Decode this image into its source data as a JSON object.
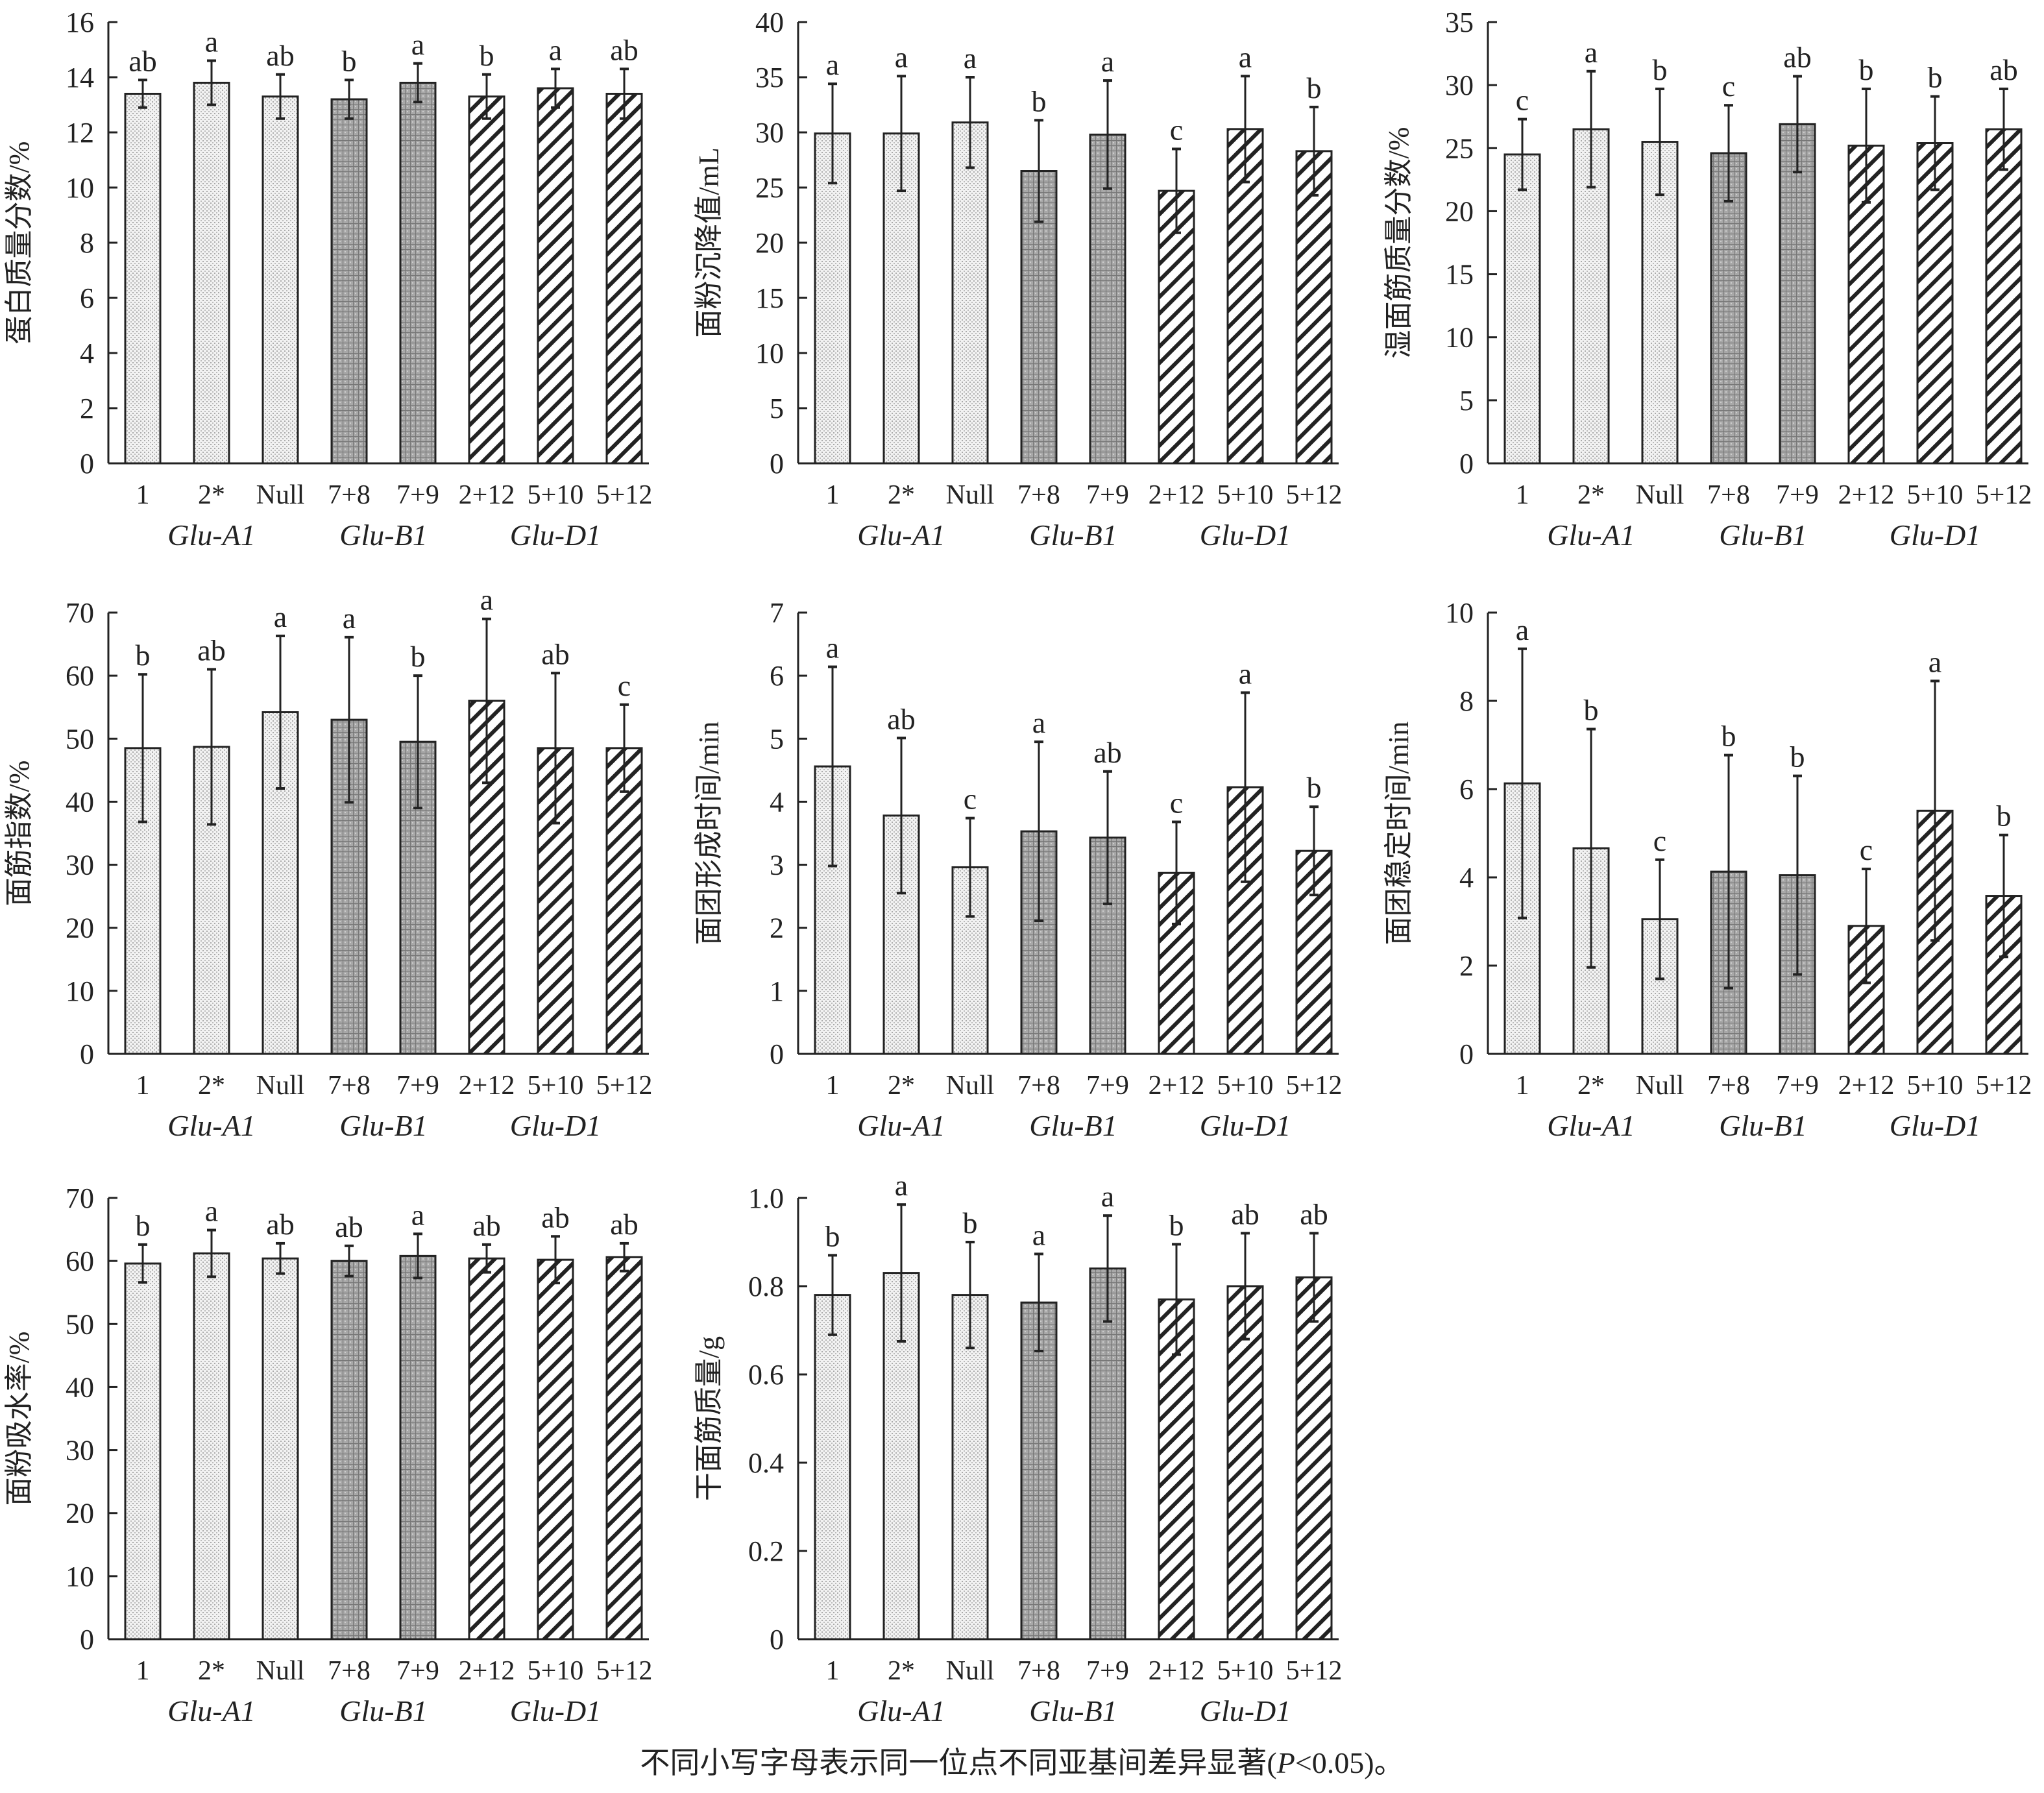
{
  "footnote": {
    "pre": "不同小写字母表示同一位点不同亚基间差异显著(",
    "italic": "P",
    "post": "<0.05)。"
  },
  "chart_data": [
    {
      "type": "bar",
      "title": "",
      "ylabel": "蛋白质量分数/%",
      "ylim": [
        0,
        16
      ],
      "yticks": [
        "0",
        "2",
        "4",
        "6",
        "8",
        "10",
        "12",
        "14",
        "16"
      ],
      "categories": [
        "1",
        "2*",
        "Null",
        "7+8",
        "7+9",
        "2+12",
        "5+10",
        "5+12"
      ],
      "groups": [
        {
          "name": "Glu-A1",
          "members": [
            0,
            1,
            2
          ]
        },
        {
          "name": "Glu-B1",
          "members": [
            3,
            4
          ]
        },
        {
          "name": "Glu-D1",
          "members": [
            5,
            6,
            7
          ]
        }
      ],
      "values": [
        13.4,
        13.8,
        13.3,
        13.2,
        13.8,
        13.3,
        13.6,
        13.4
      ],
      "errors": [
        0.5,
        0.8,
        0.8,
        0.7,
        0.7,
        0.8,
        0.7,
        0.9
      ],
      "letters": [
        "ab",
        "a",
        "ab",
        "b",
        "a",
        "b",
        "a",
        "ab"
      ]
    },
    {
      "type": "bar",
      "title": "",
      "ylabel": "面粉沉降值/mL",
      "ylim": [
        0,
        40
      ],
      "yticks": [
        "0",
        "5",
        "10",
        "15",
        "20",
        "25",
        "30",
        "35",
        "40"
      ],
      "categories": [
        "1",
        "2*",
        "Null",
        "7+8",
        "7+9",
        "2+12",
        "5+10",
        "5+12"
      ],
      "groups": [
        {
          "name": "Glu-A1",
          "members": [
            0,
            1,
            2
          ]
        },
        {
          "name": "Glu-B1",
          "members": [
            3,
            4
          ]
        },
        {
          "name": "Glu-D1",
          "members": [
            5,
            6,
            7
          ]
        }
      ],
      "values": [
        29.9,
        29.9,
        30.9,
        26.5,
        29.8,
        24.7,
        30.3,
        28.3
      ],
      "errors": [
        4.5,
        5.2,
        4.1,
        4.6,
        4.9,
        3.8,
        4.8,
        4.0
      ],
      "letters": [
        "a",
        "a",
        "a",
        "b",
        "a",
        "c",
        "a",
        "b"
      ]
    },
    {
      "type": "bar",
      "title": "",
      "ylabel": "湿面筋质量分数/%",
      "ylim": [
        0,
        35
      ],
      "yticks": [
        "0",
        "5",
        "10",
        "15",
        "20",
        "25",
        "30",
        "35"
      ],
      "categories": [
        "1",
        "2*",
        "Null",
        "7+8",
        "7+9",
        "2+12",
        "5+10",
        "5+12"
      ],
      "groups": [
        {
          "name": "Glu-A1",
          "members": [
            0,
            1,
            2
          ]
        },
        {
          "name": "Glu-B1",
          "members": [
            3,
            4
          ]
        },
        {
          "name": "Glu-D1",
          "members": [
            5,
            6,
            7
          ]
        }
      ],
      "values": [
        24.5,
        26.5,
        25.5,
        24.6,
        26.9,
        25.2,
        25.4,
        26.5
      ],
      "errors": [
        2.8,
        4.6,
        4.2,
        3.8,
        3.8,
        4.5,
        3.7,
        3.2
      ],
      "letters": [
        "c",
        "a",
        "b",
        "c",
        "ab",
        "b",
        "b",
        "ab"
      ]
    },
    {
      "type": "bar",
      "title": "",
      "ylabel": "面筋指数/%",
      "ylim": [
        0,
        70
      ],
      "yticks": [
        "0",
        "10",
        "20",
        "30",
        "40",
        "50",
        "60",
        "70"
      ],
      "categories": [
        "1",
        "2*",
        "Null",
        "7+8",
        "7+9",
        "2+12",
        "5+10",
        "5+12"
      ],
      "groups": [
        {
          "name": "Glu-A1",
          "members": [
            0,
            1,
            2
          ]
        },
        {
          "name": "Glu-B1",
          "members": [
            3,
            4
          ]
        },
        {
          "name": "Glu-D1",
          "members": [
            5,
            6,
            7
          ]
        }
      ],
      "values": [
        48.5,
        48.7,
        54.2,
        53.0,
        49.5,
        56.0,
        48.5,
        48.5
      ],
      "errors": [
        11.7,
        12.3,
        12.1,
        13.1,
        10.5,
        13.0,
        11.9,
        6.9
      ],
      "letters": [
        "b",
        "ab",
        "a",
        "a",
        "b",
        "a",
        "ab",
        "c"
      ]
    },
    {
      "type": "bar",
      "title": "",
      "ylabel": "面团形成时间/min",
      "ylim": [
        0,
        7
      ],
      "yticks": [
        "0",
        "1",
        "2",
        "3",
        "4",
        "5",
        "6",
        "7"
      ],
      "categories": [
        "1",
        "2*",
        "Null",
        "7+8",
        "7+9",
        "2+12",
        "5+10",
        "5+12"
      ],
      "groups": [
        {
          "name": "Glu-A1",
          "members": [
            0,
            1,
            2
          ]
        },
        {
          "name": "Glu-B1",
          "members": [
            3,
            4
          ]
        },
        {
          "name": "Glu-D1",
          "members": [
            5,
            6,
            7
          ]
        }
      ],
      "values": [
        4.56,
        3.78,
        2.96,
        3.53,
        3.43,
        2.87,
        4.23,
        3.22
      ],
      "errors": [
        1.58,
        1.23,
        0.78,
        1.42,
        1.05,
        0.81,
        1.5,
        0.7
      ],
      "letters": [
        "a",
        "ab",
        "c",
        "a",
        "ab",
        "c",
        "a",
        "b"
      ]
    },
    {
      "type": "bar",
      "title": "",
      "ylabel": "面团稳定时间/min",
      "ylim": [
        0,
        10
      ],
      "yticks": [
        "0",
        "2",
        "4",
        "6",
        "8",
        "10"
      ],
      "categories": [
        "1",
        "2*",
        "Null",
        "7+8",
        "7+9",
        "2+12",
        "5+10",
        "5+12"
      ],
      "groups": [
        {
          "name": "Glu-A1",
          "members": [
            0,
            1,
            2
          ]
        },
        {
          "name": "Glu-B1",
          "members": [
            3,
            4
          ]
        },
        {
          "name": "Glu-D1",
          "members": [
            5,
            6,
            7
          ]
        }
      ],
      "values": [
        6.13,
        4.66,
        3.05,
        4.13,
        4.05,
        2.9,
        5.51,
        3.58
      ],
      "errors": [
        3.05,
        2.7,
        1.35,
        2.64,
        2.25,
        1.29,
        2.94,
        1.38
      ],
      "letters": [
        "a",
        "b",
        "c",
        "b",
        "b",
        "c",
        "a",
        "b"
      ]
    },
    {
      "type": "bar",
      "title": "",
      "ylabel": "面粉吸水率/%",
      "ylim": [
        0,
        70
      ],
      "yticks": [
        "0",
        "10",
        "20",
        "30",
        "40",
        "50",
        "60",
        "70"
      ],
      "categories": [
        "1",
        "2*",
        "Null",
        "7+8",
        "7+9",
        "2+12",
        "5+10",
        "5+12"
      ],
      "groups": [
        {
          "name": "Glu-A1",
          "members": [
            0,
            1,
            2
          ]
        },
        {
          "name": "Glu-B1",
          "members": [
            3,
            4
          ]
        },
        {
          "name": "Glu-D1",
          "members": [
            5,
            6,
            7
          ]
        }
      ],
      "values": [
        59.6,
        61.2,
        60.4,
        60.0,
        60.8,
        60.4,
        60.2,
        60.6
      ],
      "errors": [
        3.0,
        3.7,
        2.4,
        2.4,
        3.5,
        2.2,
        3.7,
        2.2
      ],
      "letters": [
        "b",
        "a",
        "ab",
        "ab",
        "a",
        "ab",
        "ab",
        "ab"
      ]
    },
    {
      "type": "bar",
      "title": "",
      "ylabel": "干面筋质量/g",
      "ylim": [
        0,
        1.0
      ],
      "yticks": [
        "0",
        "0.2",
        "0.4",
        "0.6",
        "0.8",
        "1.0"
      ],
      "categories": [
        "1",
        "2*",
        "Null",
        "7+8",
        "7+9",
        "2+12",
        "5+10",
        "5+12"
      ],
      "groups": [
        {
          "name": "Glu-A1",
          "members": [
            0,
            1,
            2
          ]
        },
        {
          "name": "Glu-B1",
          "members": [
            3,
            4
          ]
        },
        {
          "name": "Glu-D1",
          "members": [
            5,
            6,
            7
          ]
        }
      ],
      "values": [
        0.78,
        0.83,
        0.78,
        0.763,
        0.84,
        0.77,
        0.8,
        0.82
      ],
      "errors": [
        0.09,
        0.155,
        0.12,
        0.11,
        0.12,
        0.125,
        0.12,
        0.1
      ],
      "letters": [
        "b",
        "a",
        "b",
        "a",
        "a",
        "b",
        "ab",
        "ab"
      ]
    }
  ]
}
